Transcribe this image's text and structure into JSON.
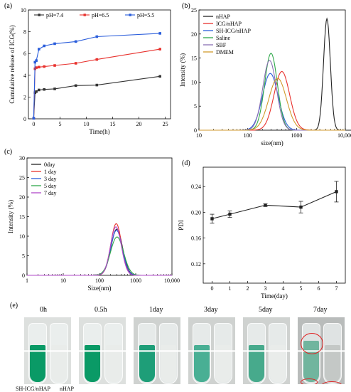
{
  "chart_data": [
    {
      "panel": "(a)",
      "type": "line",
      "xlabel": "Time(h)",
      "ylabel": "Cumulative release of ICG(%)",
      "xlim": [
        -1,
        26
      ],
      "ylim": [
        0,
        10
      ],
      "xticks": [
        "0",
        "5",
        "10",
        "15",
        "20",
        "25"
      ],
      "yticks": [
        "0",
        "2",
        "4",
        "6",
        "8",
        "10"
      ],
      "legend": "top",
      "series": [
        {
          "name": "pH=7.4",
          "color": "#333333",
          "x": [
            0,
            0.25,
            0.5,
            1,
            2,
            4,
            8,
            12,
            24
          ],
          "y": [
            0.05,
            2.4,
            2.5,
            2.65,
            2.7,
            2.75,
            3.05,
            3.1,
            3.9
          ]
        },
        {
          "name": "pH=6.5",
          "color": "#e8322e",
          "x": [
            0,
            0.25,
            0.5,
            1,
            2,
            4,
            8,
            12,
            24
          ],
          "y": [
            0.05,
            4.6,
            4.7,
            4.75,
            4.8,
            4.9,
            5.1,
            5.45,
            6.4
          ]
        },
        {
          "name": "pH=5.5",
          "color": "#2a5ddb",
          "x": [
            0,
            0.25,
            0.5,
            1,
            2,
            4,
            8,
            12,
            24
          ],
          "y": [
            0.05,
            5.2,
            5.35,
            6.4,
            6.7,
            6.9,
            7.1,
            7.55,
            7.85
          ]
        }
      ]
    },
    {
      "panel": "(b)",
      "type": "line",
      "xlabel": "size(nm)",
      "ylabel": "Intensity (%)",
      "xscale": "log",
      "xlim": [
        10,
        10000
      ],
      "ylim": [
        0,
        25
      ],
      "xticks": [
        "10",
        "100",
        "1000",
        "10,000"
      ],
      "yticks": [
        "0",
        "5",
        "10",
        "15",
        "20",
        "25"
      ],
      "legend": "top-left",
      "series": [
        {
          "name": "nHAP",
          "color": "#222222",
          "peak": [
            4200,
            23.2
          ],
          "width": 0.07
        },
        {
          "name": "ICG/nHAP",
          "color": "#e8322e",
          "peak": [
            500,
            12.2
          ],
          "width": 0.16
        },
        {
          "name": "SH-ICG/nHAP",
          "color": "#2a5ddb",
          "peak": [
            290,
            11.8
          ],
          "width": 0.16
        },
        {
          "name": "Saline",
          "color": "#2ea84a",
          "peak": [
            300,
            16.0
          ],
          "width": 0.13
        },
        {
          "name": "SBF",
          "color": "#8a6fb3",
          "peak": [
            280,
            14.5
          ],
          "width": 0.14
        },
        {
          "name": "DMEM",
          "color": "#d19a2c",
          "peak": [
            410,
            10.8
          ],
          "width": 0.18
        }
      ]
    },
    {
      "panel": "(c)",
      "type": "line",
      "xlabel": "Size(nm)",
      "ylabel": "Intensity (%)",
      "xscale": "log",
      "xlim": [
        1,
        10000
      ],
      "ylim": [
        0,
        30
      ],
      "xticks": [
        "1",
        "10",
        "100",
        "1000",
        "10,000"
      ],
      "yticks": [
        "0",
        "5",
        "10",
        "15",
        "20",
        "25",
        "30"
      ],
      "legend": "top-left",
      "series": [
        {
          "name": "0day",
          "color": "#222222",
          "peak": [
            300,
            11.8
          ],
          "width": 0.16
        },
        {
          "name": "1 day",
          "color": "#e8322e",
          "peak": [
            290,
            13.2
          ],
          "width": 0.15
        },
        {
          "name": "3 day",
          "color": "#2a5ddb",
          "peak": [
            295,
            11.5
          ],
          "width": 0.16
        },
        {
          "name": "5 day",
          "color": "#2ea84a",
          "peak": [
            305,
            9.8
          ],
          "width": 0.18
        },
        {
          "name": "7 day",
          "color": "#b048c9",
          "peak": [
            285,
            12.4
          ],
          "width": 0.15
        }
      ]
    },
    {
      "panel": "(d)",
      "type": "line",
      "xlabel": "Time(day)",
      "ylabel": "PDI",
      "xlim": [
        -0.5,
        7.5
      ],
      "ylim": [
        0.09,
        0.27
      ],
      "xticks": [
        "0",
        "1",
        "2",
        "3",
        "4",
        "5",
        "6",
        "7"
      ],
      "yticks": [
        "0.12",
        "0.16",
        "0.20",
        "0.24"
      ],
      "series": [
        {
          "name": "",
          "color": "#222222",
          "x": [
            0,
            1,
            3,
            5,
            7
          ],
          "y": [
            0.19,
            0.197,
            0.211,
            0.208,
            0.232
          ],
          "err": [
            0.007,
            0.005,
            0.002,
            0.009,
            0.016
          ]
        }
      ]
    }
  ],
  "photos": {
    "panel": "(e)",
    "timepoints": [
      "0h",
      "0.5h",
      "1day",
      "3day",
      "5day",
      "7day"
    ],
    "left_label": "SH-ICG/nHAP",
    "right_label": "nHAP"
  }
}
